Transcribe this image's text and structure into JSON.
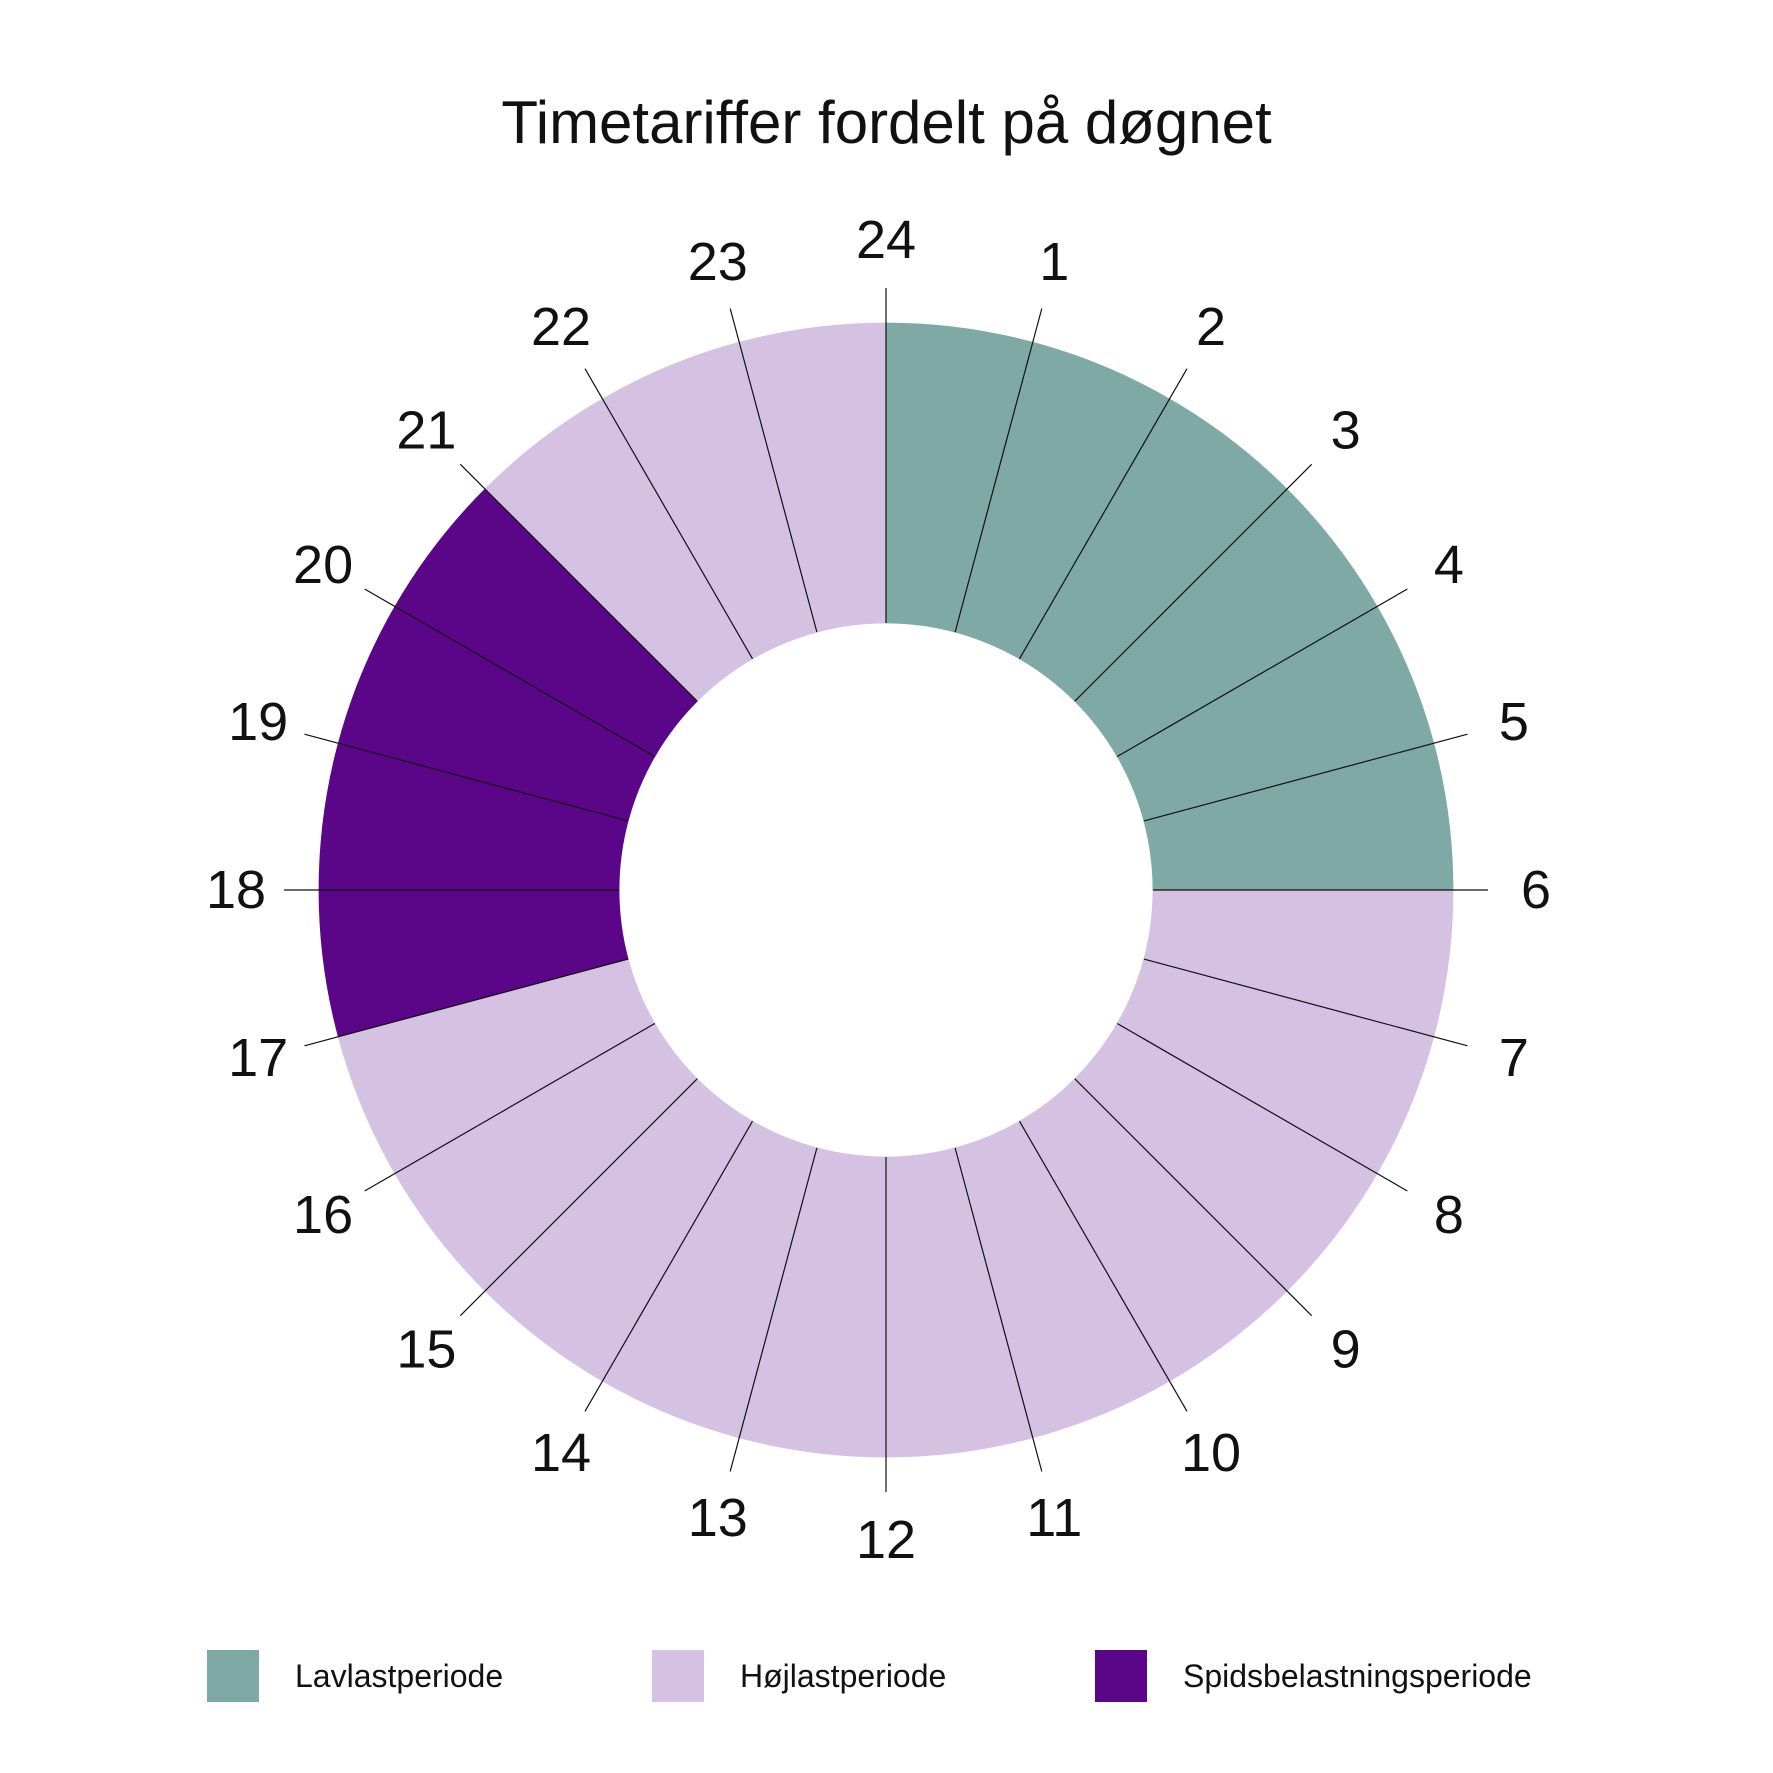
{
  "chart_data": {
    "type": "pie",
    "title": "Timetariffer fordelt på døgnet",
    "categories": [
      "1",
      "2",
      "3",
      "4",
      "5",
      "6",
      "7",
      "8",
      "9",
      "10",
      "11",
      "12",
      "13",
      "14",
      "15",
      "16",
      "17",
      "18",
      "19",
      "20",
      "21",
      "22",
      "23",
      "24"
    ],
    "hour_period": [
      "Lavlastperiode",
      "Lavlastperiode",
      "Lavlastperiode",
      "Lavlastperiode",
      "Lavlastperiode",
      "Lavlastperiode",
      "Højlastperiode",
      "Højlastperiode",
      "Højlastperiode",
      "Højlastperiode",
      "Højlastperiode",
      "Højlastperiode",
      "Højlastperiode",
      "Højlastperiode",
      "Højlastperiode",
      "Højlastperiode",
      "Højlastperiode",
      "Spidsbelastningsperiode",
      "Spidsbelastningsperiode",
      "Spidsbelastningsperiode",
      "Spidsbelastningsperiode",
      "Højlastperiode",
      "Højlastperiode",
      "Højlastperiode"
    ],
    "values": [
      1,
      1,
      1,
      1,
      1,
      1,
      1,
      1,
      1,
      1,
      1,
      1,
      1,
      1,
      1,
      1,
      1,
      1,
      1,
      1,
      1,
      1,
      1,
      1
    ],
    "legend": [
      {
        "name": "Lavlastperiode",
        "color": "#7fa9a5"
      },
      {
        "name": "Højlastperiode",
        "color": "#d5c1e1"
      },
      {
        "name": "Spidsbelastningsperiode",
        "color": "#5b0689"
      }
    ],
    "legend_position": "bottom",
    "style": "donut"
  }
}
